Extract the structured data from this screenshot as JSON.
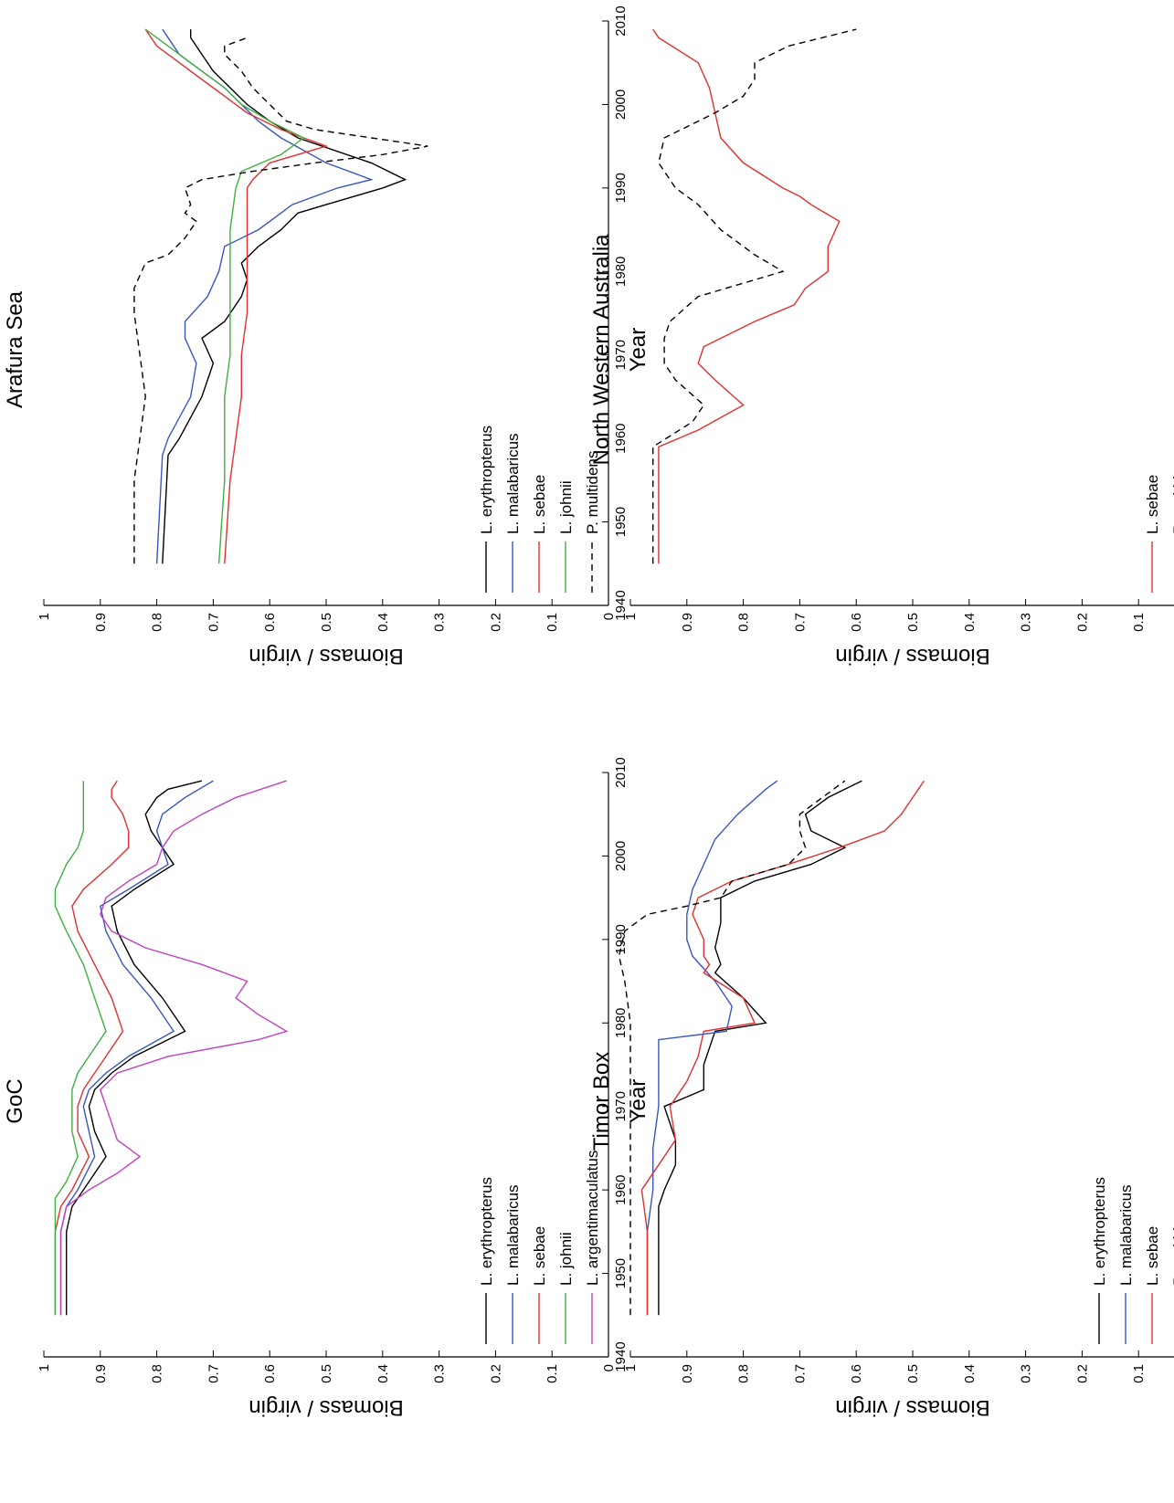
{
  "chart_data": [
    {
      "type": "line",
      "title": "Arafura Sea",
      "xlabel": "Year",
      "ylabel": "Biomass / virgin",
      "xlim": [
        1940,
        2010
      ],
      "ylim": [
        0,
        1
      ],
      "xticks": [
        "1940",
        "1950",
        "1960",
        "1970",
        "1980",
        "1990",
        "2000",
        "2010"
      ],
      "yticks": [
        "0",
        "0.1",
        "0.2",
        "0.3",
        "0.4",
        "0.5",
        "0.6",
        "0.7",
        "0.8",
        "0.9",
        "1"
      ],
      "grid": false,
      "legend": "lower-left",
      "series": [
        {
          "name": "L. erythropterus",
          "color": "#000000",
          "dash": false,
          "x": [
            1945,
            1958,
            1960,
            1965,
            1969,
            1972,
            1974,
            1977,
            1979,
            1981,
            1983,
            1985,
            1987,
            1988,
            1990,
            1991,
            1993,
            1996,
            1998,
            2000,
            2002,
            2004,
            2006,
            2008,
            2009
          ],
          "y": [
            0.79,
            0.78,
            0.76,
            0.72,
            0.7,
            0.72,
            0.68,
            0.65,
            0.64,
            0.65,
            0.62,
            0.58,
            0.55,
            0.5,
            0.4,
            0.36,
            0.42,
            0.55,
            0.6,
            0.64,
            0.67,
            0.7,
            0.72,
            0.74,
            0.74
          ]
        },
        {
          "name": "L. malabaricus",
          "color": "#3a55c0",
          "dash": false,
          "x": [
            1945,
            1958,
            1960,
            1965,
            1969,
            1972,
            1974,
            1977,
            1980,
            1983,
            1985,
            1987,
            1988,
            1990,
            1991,
            1993,
            1996,
            1998,
            2000,
            2002,
            2004,
            2006,
            2008,
            2009
          ],
          "y": [
            0.8,
            0.79,
            0.78,
            0.74,
            0.73,
            0.75,
            0.75,
            0.71,
            0.69,
            0.68,
            0.62,
            0.58,
            0.56,
            0.48,
            0.42,
            0.5,
            0.58,
            0.62,
            0.65,
            0.68,
            0.72,
            0.76,
            0.78,
            0.79
          ]
        },
        {
          "name": "L. sebae",
          "color": "#e03030",
          "dash": false,
          "x": [
            1945,
            1955,
            1960,
            1965,
            1970,
            1975,
            1980,
            1985,
            1990,
            1991,
            1993,
            1995,
            1997,
            1999,
            2001,
            2003,
            2005,
            2007,
            2009
          ],
          "y": [
            0.68,
            0.67,
            0.66,
            0.65,
            0.65,
            0.64,
            0.64,
            0.64,
            0.64,
            0.63,
            0.6,
            0.5,
            0.58,
            0.64,
            0.68,
            0.72,
            0.76,
            0.8,
            0.82
          ]
        },
        {
          "name": "L. johnii",
          "color": "#40b040",
          "dash": false,
          "x": [
            1945,
            1955,
            1960,
            1965,
            1970,
            1975,
            1980,
            1985,
            1990,
            1992,
            1994,
            1996,
            1998,
            2000,
            2002,
            2004,
            2006,
            2008,
            2009
          ],
          "y": [
            0.69,
            0.68,
            0.68,
            0.68,
            0.67,
            0.67,
            0.67,
            0.67,
            0.66,
            0.65,
            0.58,
            0.54,
            0.6,
            0.65,
            0.68,
            0.72,
            0.76,
            0.8,
            0.82
          ]
        },
        {
          "name": "P. multidens",
          "color": "#000000",
          "dash": true,
          "x": [
            1945,
            1955,
            1960,
            1965,
            1970,
            1975,
            1978,
            1981,
            1982,
            1984,
            1986,
            1987,
            1988,
            1990,
            1991,
            1992,
            1993,
            1994,
            1995,
            1996,
            1997,
            1998,
            2000,
            2002,
            2004,
            2006,
            2007,
            2008
          ],
          "y": [
            0.84,
            0.84,
            0.83,
            0.82,
            0.83,
            0.84,
            0.84,
            0.82,
            0.78,
            0.75,
            0.73,
            0.75,
            0.74,
            0.75,
            0.72,
            0.63,
            0.52,
            0.4,
            0.32,
            0.42,
            0.52,
            0.57,
            0.6,
            0.63,
            0.65,
            0.68,
            0.68,
            0.64
          ]
        }
      ]
    },
    {
      "type": "line",
      "title": "GoC",
      "xlabel": "Year",
      "ylabel": "Biomass / virgin",
      "xlim": [
        1940,
        2010
      ],
      "ylim": [
        0,
        1
      ],
      "xticks": [
        "1940",
        "1950",
        "1960",
        "1970",
        "1980",
        "1990",
        "2000",
        "2010"
      ],
      "yticks": [
        "0",
        "0.1",
        "0.2",
        "0.3",
        "0.4",
        "0.5",
        "0.6",
        "0.7",
        "0.8",
        "0.9",
        "1"
      ],
      "grid": false,
      "legend": "lower-left",
      "series": [
        {
          "name": "L. erythropterus",
          "color": "#000000",
          "dash": false,
          "x": [
            1945,
            1955,
            1958,
            1960,
            1964,
            1967,
            1970,
            1972,
            1974,
            1976,
            1979,
            1983,
            1987,
            1991,
            1994,
            1996,
            1999,
            2001,
            2003,
            2005,
            2007,
            2008,
            2009
          ],
          "y": [
            0.96,
            0.96,
            0.95,
            0.93,
            0.89,
            0.91,
            0.92,
            0.91,
            0.88,
            0.84,
            0.75,
            0.79,
            0.84,
            0.87,
            0.88,
            0.84,
            0.77,
            0.79,
            0.81,
            0.82,
            0.8,
            0.78,
            0.72
          ]
        },
        {
          "name": "L. malabaricus",
          "color": "#3a55c0",
          "dash": false,
          "x": [
            1945,
            1955,
            1958,
            1960,
            1964,
            1967,
            1970,
            1972,
            1974,
            1976,
            1979,
            1983,
            1987,
            1991,
            1994,
            1996,
            1999,
            2001,
            2003,
            2005,
            2007,
            2009
          ],
          "y": [
            0.97,
            0.97,
            0.96,
            0.94,
            0.91,
            0.92,
            0.93,
            0.92,
            0.89,
            0.85,
            0.77,
            0.81,
            0.86,
            0.89,
            0.9,
            0.85,
            0.78,
            0.79,
            0.8,
            0.79,
            0.75,
            0.7
          ]
        },
        {
          "name": "L. sebae",
          "color": "#e03030",
          "dash": false,
          "x": [
            1945,
            1955,
            1958,
            1960,
            1964,
            1967,
            1970,
            1972,
            1974,
            1976,
            1979,
            1983,
            1987,
            1991,
            1994,
            1996,
            1999,
            2001,
            2003,
            2005,
            2007,
            2008,
            2009
          ],
          "y": [
            0.98,
            0.98,
            0.97,
            0.95,
            0.92,
            0.94,
            0.94,
            0.93,
            0.91,
            0.89,
            0.86,
            0.88,
            0.91,
            0.94,
            0.95,
            0.93,
            0.88,
            0.85,
            0.85,
            0.86,
            0.88,
            0.88,
            0.87
          ]
        },
        {
          "name": "L. johnii",
          "color": "#40b040",
          "dash": false,
          "x": [
            1945,
            1955,
            1959,
            1961,
            1964,
            1967,
            1970,
            1972,
            1974,
            1976,
            1979,
            1983,
            1987,
            1991,
            1994,
            1996,
            1999,
            2001,
            2003,
            2005,
            2007,
            2009
          ],
          "y": [
            0.98,
            0.98,
            0.98,
            0.96,
            0.94,
            0.95,
            0.95,
            0.95,
            0.94,
            0.92,
            0.89,
            0.91,
            0.93,
            0.96,
            0.98,
            0.98,
            0.96,
            0.94,
            0.93,
            0.93,
            0.93,
            0.93
          ]
        },
        {
          "name": "L. argentimaculatus",
          "color": "#c040c0",
          "dash": false,
          "x": [
            1945,
            1955,
            1958,
            1960,
            1962,
            1964,
            1966,
            1968,
            1970,
            1972,
            1974,
            1976,
            1978,
            1979,
            1981,
            1983,
            1985,
            1987,
            1989,
            1991,
            1993,
            1995,
            1997,
            1999,
            2001,
            2003,
            2005,
            2007,
            2009
          ],
          "y": [
            0.97,
            0.97,
            0.96,
            0.92,
            0.87,
            0.83,
            0.87,
            0.88,
            0.89,
            0.9,
            0.87,
            0.78,
            0.62,
            0.57,
            0.62,
            0.66,
            0.64,
            0.72,
            0.82,
            0.88,
            0.9,
            0.89,
            0.85,
            0.8,
            0.79,
            0.77,
            0.72,
            0.66,
            0.57
          ]
        }
      ]
    },
    {
      "type": "line",
      "title": "North Western Australia",
      "xlabel": "Year",
      "ylabel": "Biomass / virgin",
      "xlim": [
        1940,
        2010
      ],
      "ylim": [
        0,
        1
      ],
      "xticks": [
        "1940",
        "1950",
        "1960",
        "1970",
        "1980",
        "1990",
        "2000",
        "2010"
      ],
      "yticks": [
        "0",
        "0.1",
        "0.2",
        "0.3",
        "0.4",
        "0.5",
        "0.6",
        "0.7",
        "0.8",
        "0.9",
        "1"
      ],
      "grid": false,
      "legend": "lower-left",
      "series": [
        {
          "name": "L. sebae",
          "color": "#e03030",
          "dash": false,
          "x": [
            1945,
            1959,
            1961,
            1964,
            1967,
            1969,
            1971,
            1974,
            1976,
            1978,
            1980,
            1983,
            1986,
            1988,
            1989,
            1990,
            1993,
            1996,
            1999,
            2002,
            2005,
            2008,
            2009
          ],
          "y": [
            0.95,
            0.95,
            0.88,
            0.8,
            0.85,
            0.88,
            0.87,
            0.78,
            0.71,
            0.69,
            0.65,
            0.65,
            0.63,
            0.68,
            0.7,
            0.73,
            0.8,
            0.84,
            0.85,
            0.86,
            0.88,
            0.95,
            0.96
          ]
        },
        {
          "name": "P. multidens",
          "color": "#000000",
          "dash": true,
          "x": [
            1945,
            1959,
            1962,
            1964,
            1967,
            1969,
            1972,
            1974,
            1977,
            1980,
            1982,
            1985,
            1988,
            1990,
            1993,
            1996,
            1999,
            2001,
            2003,
            2005,
            2007,
            2009
          ],
          "y": [
            0.96,
            0.96,
            0.89,
            0.87,
            0.92,
            0.94,
            0.94,
            0.93,
            0.88,
            0.73,
            0.78,
            0.84,
            0.88,
            0.92,
            0.95,
            0.94,
            0.85,
            0.8,
            0.78,
            0.78,
            0.72,
            0.6
          ]
        }
      ]
    },
    {
      "type": "line",
      "title": "Timor Box",
      "xlabel": "Year",
      "ylabel": "Biomass / virgin",
      "xlim": [
        1940,
        2010
      ],
      "ylim": [
        0,
        1
      ],
      "xticks": [
        "1940",
        "1950",
        "1960",
        "1970",
        "1980",
        "1990",
        "2000",
        "2010"
      ],
      "yticks": [
        "0",
        "0.1",
        "0.2",
        "0.3",
        "0.4",
        "0.5",
        "0.6",
        "0.7",
        "0.8",
        "0.9",
        "1"
      ],
      "grid": false,
      "legend": "lower-left",
      "series": [
        {
          "name": "L. erythropterus",
          "color": "#000000",
          "dash": false,
          "x": [
            1945,
            1958,
            1960,
            1963,
            1966,
            1970,
            1972,
            1975,
            1977,
            1979,
            1980,
            1983,
            1986,
            1987,
            1989,
            1992,
            1995,
            1997,
            1999,
            2001,
            2003,
            2005,
            2007,
            2009
          ],
          "y": [
            0.95,
            0.95,
            0.94,
            0.92,
            0.92,
            0.94,
            0.87,
            0.87,
            0.86,
            0.85,
            0.76,
            0.8,
            0.85,
            0.84,
            0.85,
            0.84,
            0.84,
            0.78,
            0.68,
            0.62,
            0.68,
            0.69,
            0.65,
            0.59
          ]
        },
        {
          "name": "L. malabaricus",
          "color": "#3a55c0",
          "dash": false,
          "x": [
            1945,
            1955,
            1960,
            1965,
            1970,
            1975,
            1978,
            1979,
            1982,
            1985,
            1988,
            1990,
            1993,
            1996,
            1999,
            2002,
            2005,
            2008,
            2009
          ],
          "y": [
            0.97,
            0.97,
            0.96,
            0.96,
            0.95,
            0.95,
            0.95,
            0.83,
            0.82,
            0.85,
            0.89,
            0.9,
            0.9,
            0.89,
            0.87,
            0.85,
            0.81,
            0.76,
            0.74
          ]
        },
        {
          "name": "L. sebae",
          "color": "#e03030",
          "dash": false,
          "x": [
            1945,
            1955,
            1960,
            1963,
            1966,
            1970,
            1973,
            1976,
            1979,
            1980,
            1983,
            1986,
            1987,
            1988,
            1990,
            1993,
            1995,
            1997,
            1999,
            2001,
            2003,
            2005,
            2007,
            2009
          ],
          "y": [
            0.97,
            0.97,
            0.98,
            0.95,
            0.92,
            0.93,
            0.9,
            0.88,
            0.87,
            0.78,
            0.8,
            0.87,
            0.86,
            0.87,
            0.87,
            0.89,
            0.88,
            0.82,
            0.72,
            0.63,
            0.55,
            0.52,
            0.5,
            0.48
          ]
        },
        {
          "name": "P. multidens",
          "color": "#000000",
          "dash": true,
          "x": [
            1945,
            1955,
            1960,
            1965,
            1970,
            1975,
            1980,
            1985,
            1988,
            1991,
            1993,
            1994,
            1995,
            1997,
            1999,
            2001,
            2003,
            2005,
            2007,
            2009
          ],
          "y": [
            1.0,
            1.0,
            1.0,
            1.0,
            1.0,
            1.0,
            1.0,
            1.01,
            1.02,
            1.01,
            0.97,
            0.9,
            0.84,
            0.82,
            0.72,
            0.69,
            0.7,
            0.7,
            0.66,
            0.62
          ]
        }
      ]
    }
  ]
}
